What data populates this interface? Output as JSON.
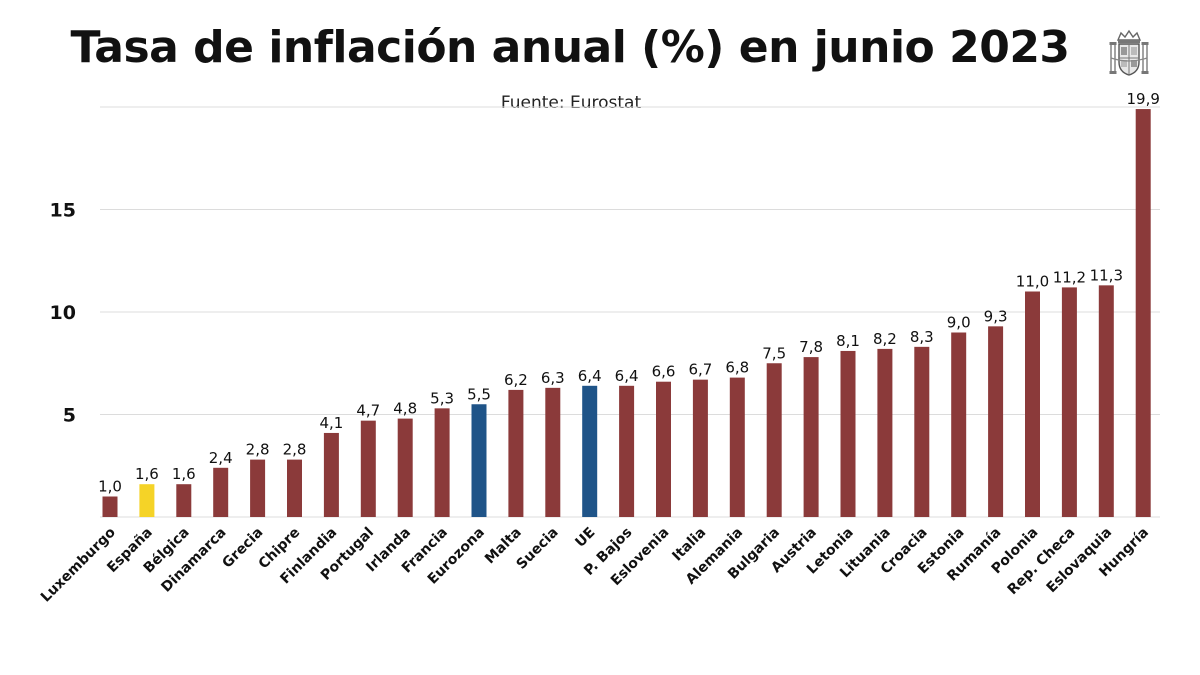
{
  "chart_data": {
    "type": "bar",
    "title": "Tasa de inflación anual (%) en junio 2023",
    "subtitle": "Fuente: Eurostat",
    "xlabel": "",
    "ylabel": "",
    "ylim": [
      0,
      20
    ],
    "yticks": [
      5,
      10,
      15
    ],
    "grid": true,
    "categories": [
      "Luxemburgo",
      "España",
      "Bélgica",
      "Dinamarca",
      "Grecia",
      "Chipre",
      "Finlandia",
      "Portugal",
      "Irlanda",
      "Francia",
      "Eurozona",
      "Malta",
      "Suecia",
      "UE",
      "P. Bajos",
      "Eslovenia",
      "Italia",
      "Alemania",
      "Bulgaria",
      "Austria",
      "Letonia",
      "Lituania",
      "Croacia",
      "Estonia",
      "Rumanía",
      "Polonia",
      "Rep. Checa",
      "Eslovaquia",
      "Hungría"
    ],
    "values": [
      1.0,
      1.6,
      1.6,
      2.4,
      2.8,
      2.8,
      4.1,
      4.7,
      4.8,
      5.3,
      5.5,
      6.2,
      6.3,
      6.4,
      6.4,
      6.6,
      6.7,
      6.8,
      7.5,
      7.8,
      8.1,
      8.2,
      8.3,
      9.0,
      9.3,
      11.0,
      11.2,
      11.3,
      19.9
    ],
    "value_labels": [
      "1,0",
      "1,6",
      "1,6",
      "2,4",
      "2,8",
      "2,8",
      "4,1",
      "4,7",
      "4,8",
      "5,3",
      "5,5",
      "6,2",
      "6,3",
      "6,4",
      "6,4",
      "6,6",
      "6,7",
      "6,8",
      "7,5",
      "7,8",
      "8,1",
      "8,2",
      "8,3",
      "9,0",
      "9,3",
      "11,0",
      "11,2",
      "11,3",
      "19,9"
    ],
    "colors": {
      "default": "#8b3a3a",
      "highlight_spain": "#f5d327",
      "highlight_aggregate": "#1f5488",
      "grid": "#dcdcdc"
    },
    "bar_color_keys": [
      "default",
      "highlight_spain",
      "default",
      "default",
      "default",
      "default",
      "default",
      "default",
      "default",
      "default",
      "highlight_aggregate",
      "default",
      "default",
      "highlight_aggregate",
      "default",
      "default",
      "default",
      "default",
      "default",
      "default",
      "default",
      "default",
      "default",
      "default",
      "default",
      "default",
      "default",
      "default",
      "default"
    ]
  },
  "logo": {
    "icon": "spanish-coat-of-arms-icon"
  }
}
